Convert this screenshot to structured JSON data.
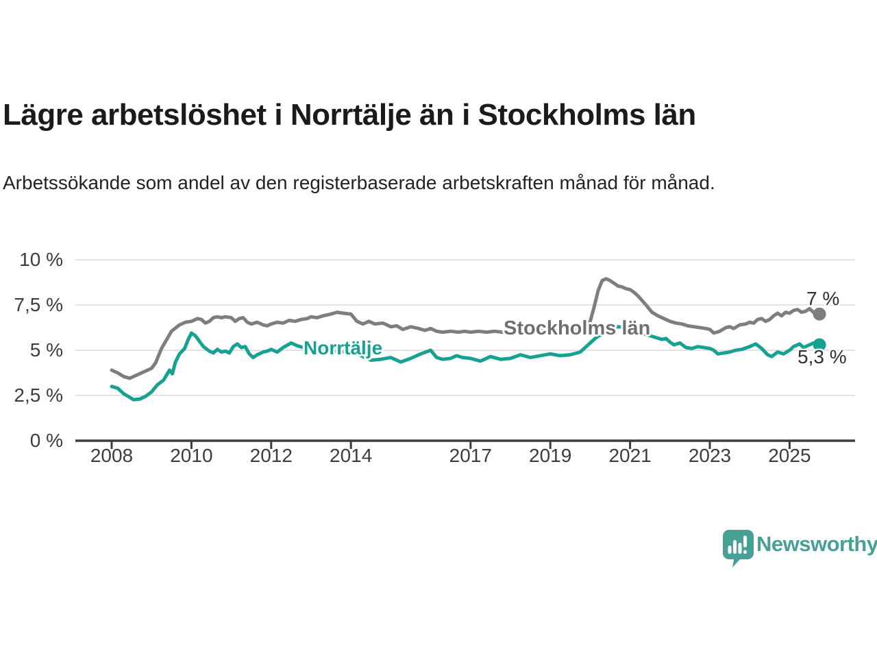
{
  "header": {
    "title": "Lägre arbetslöshet i Norrtälje än i Stockholms län",
    "subtitle": "Arbetssökande som andel av den registerbaserade arbetskraften månad för månad."
  },
  "chart_data": {
    "type": "line",
    "title": "Lägre arbetslöshet i Norrtälje än i Stockholms län",
    "subtitle": "Arbetssökande som andel av den registerbaserade arbetskraften månad för månad.",
    "unit": "%",
    "grid": true,
    "legend_position": "inline-labels",
    "x_axis": {
      "ticks": [
        2008,
        2010,
        2012,
        2014,
        2017,
        2019,
        2021,
        2023,
        2025
      ],
      "range": [
        2007.1,
        2026.6
      ]
    },
    "y_axis": {
      "ticks": [
        0,
        2.5,
        5,
        7.5,
        10
      ],
      "tick_labels": [
        "0 %",
        "2,5 %",
        "5 %",
        "7,5 %",
        "10 %"
      ],
      "range": [
        0,
        10
      ]
    },
    "series": [
      {
        "name": "Stockholms län",
        "color": "#7e7e7e",
        "end_label": "7 %",
        "end_value": 7.0,
        "points": [
          [
            2008.0,
            3.9
          ],
          [
            2008.15,
            3.75
          ],
          [
            2008.3,
            3.55
          ],
          [
            2008.45,
            3.45
          ],
          [
            2008.6,
            3.6
          ],
          [
            2008.8,
            3.8
          ],
          [
            2009.0,
            4.0
          ],
          [
            2009.1,
            4.3
          ],
          [
            2009.25,
            5.1
          ],
          [
            2009.5,
            6.05
          ],
          [
            2009.7,
            6.4
          ],
          [
            2009.85,
            6.55
          ],
          [
            2010.0,
            6.6
          ],
          [
            2010.15,
            6.75
          ],
          [
            2010.25,
            6.7
          ],
          [
            2010.35,
            6.5
          ],
          [
            2010.45,
            6.6
          ],
          [
            2010.55,
            6.8
          ],
          [
            2010.65,
            6.85
          ],
          [
            2010.75,
            6.8
          ],
          [
            2010.85,
            6.85
          ],
          [
            2011.0,
            6.8
          ],
          [
            2011.1,
            6.6
          ],
          [
            2011.2,
            6.75
          ],
          [
            2011.3,
            6.8
          ],
          [
            2011.4,
            6.55
          ],
          [
            2011.5,
            6.45
          ],
          [
            2011.65,
            6.55
          ],
          [
            2011.8,
            6.4
          ],
          [
            2011.9,
            6.35
          ],
          [
            2012.0,
            6.45
          ],
          [
            2012.15,
            6.55
          ],
          [
            2012.3,
            6.5
          ],
          [
            2012.45,
            6.65
          ],
          [
            2012.6,
            6.6
          ],
          [
            2012.75,
            6.7
          ],
          [
            2012.9,
            6.75
          ],
          [
            2013.0,
            6.85
          ],
          [
            2013.15,
            6.8
          ],
          [
            2013.3,
            6.9
          ],
          [
            2013.5,
            7.0
          ],
          [
            2013.65,
            7.1
          ],
          [
            2013.8,
            7.05
          ],
          [
            2014.0,
            7.0
          ],
          [
            2014.15,
            6.6
          ],
          [
            2014.3,
            6.45
          ],
          [
            2014.45,
            6.6
          ],
          [
            2014.6,
            6.45
          ],
          [
            2014.8,
            6.5
          ],
          [
            2015.0,
            6.3
          ],
          [
            2015.15,
            6.35
          ],
          [
            2015.3,
            6.15
          ],
          [
            2015.5,
            6.3
          ],
          [
            2015.7,
            6.2
          ],
          [
            2015.85,
            6.1
          ],
          [
            2016.0,
            6.2
          ],
          [
            2016.15,
            6.05
          ],
          [
            2016.3,
            6.0
          ],
          [
            2016.5,
            6.05
          ],
          [
            2016.7,
            6.0
          ],
          [
            2016.85,
            6.05
          ],
          [
            2017.0,
            6.0
          ],
          [
            2017.2,
            6.05
          ],
          [
            2017.4,
            6.0
          ],
          [
            2017.6,
            6.05
          ],
          [
            2017.8,
            6.0
          ],
          [
            2018.0,
            6.05
          ],
          [
            2018.25,
            6.1
          ],
          [
            2018.5,
            6.05
          ],
          [
            2018.75,
            6.1
          ],
          [
            2019.0,
            6.05
          ],
          [
            2019.25,
            6.1
          ],
          [
            2019.5,
            6.05
          ],
          [
            2019.75,
            6.15
          ],
          [
            2019.9,
            6.3
          ],
          [
            2020.0,
            6.6
          ],
          [
            2020.1,
            7.4
          ],
          [
            2020.2,
            8.3
          ],
          [
            2020.3,
            8.85
          ],
          [
            2020.4,
            8.95
          ],
          [
            2020.5,
            8.85
          ],
          [
            2020.6,
            8.7
          ],
          [
            2020.7,
            8.55
          ],
          [
            2020.8,
            8.5
          ],
          [
            2020.9,
            8.4
          ],
          [
            2021.0,
            8.35
          ],
          [
            2021.1,
            8.2
          ],
          [
            2021.2,
            8.0
          ],
          [
            2021.3,
            7.75
          ],
          [
            2021.4,
            7.5
          ],
          [
            2021.55,
            7.1
          ],
          [
            2021.7,
            6.9
          ],
          [
            2021.85,
            6.75
          ],
          [
            2022.0,
            6.6
          ],
          [
            2022.15,
            6.5
          ],
          [
            2022.3,
            6.45
          ],
          [
            2022.45,
            6.35
          ],
          [
            2022.6,
            6.3
          ],
          [
            2022.75,
            6.25
          ],
          [
            2022.9,
            6.2
          ],
          [
            2023.0,
            6.15
          ],
          [
            2023.1,
            5.95
          ],
          [
            2023.25,
            6.05
          ],
          [
            2023.4,
            6.25
          ],
          [
            2023.5,
            6.3
          ],
          [
            2023.6,
            6.2
          ],
          [
            2023.75,
            6.4
          ],
          [
            2023.9,
            6.45
          ],
          [
            2024.0,
            6.55
          ],
          [
            2024.1,
            6.5
          ],
          [
            2024.2,
            6.7
          ],
          [
            2024.3,
            6.75
          ],
          [
            2024.4,
            6.6
          ],
          [
            2024.5,
            6.7
          ],
          [
            2024.6,
            6.9
          ],
          [
            2024.7,
            7.05
          ],
          [
            2024.8,
            6.9
          ],
          [
            2024.9,
            7.1
          ],
          [
            2025.0,
            7.05
          ],
          [
            2025.1,
            7.2
          ],
          [
            2025.2,
            7.25
          ],
          [
            2025.3,
            7.1
          ],
          [
            2025.4,
            7.15
          ],
          [
            2025.5,
            7.3
          ],
          [
            2025.6,
            7.1
          ],
          [
            2025.67,
            7.05
          ],
          [
            2025.75,
            7.0
          ]
        ]
      },
      {
        "name": "Norrtälje",
        "color": "#16a192",
        "end_label": "5,3 %",
        "end_value": 5.3,
        "points": [
          [
            2008.0,
            3.0
          ],
          [
            2008.15,
            2.9
          ],
          [
            2008.3,
            2.6
          ],
          [
            2008.45,
            2.4
          ],
          [
            2008.55,
            2.27
          ],
          [
            2008.7,
            2.3
          ],
          [
            2008.85,
            2.45
          ],
          [
            2009.0,
            2.7
          ],
          [
            2009.15,
            3.1
          ],
          [
            2009.3,
            3.35
          ],
          [
            2009.45,
            3.9
          ],
          [
            2009.52,
            3.7
          ],
          [
            2009.6,
            4.35
          ],
          [
            2009.7,
            4.8
          ],
          [
            2009.83,
            5.1
          ],
          [
            2009.92,
            5.6
          ],
          [
            2010.0,
            5.95
          ],
          [
            2010.1,
            5.8
          ],
          [
            2010.2,
            5.5
          ],
          [
            2010.3,
            5.2
          ],
          [
            2010.45,
            4.95
          ],
          [
            2010.55,
            4.85
          ],
          [
            2010.65,
            5.05
          ],
          [
            2010.75,
            4.9
          ],
          [
            2010.85,
            4.95
          ],
          [
            2010.95,
            4.85
          ],
          [
            2011.05,
            5.2
          ],
          [
            2011.15,
            5.35
          ],
          [
            2011.25,
            5.15
          ],
          [
            2011.35,
            5.2
          ],
          [
            2011.45,
            4.8
          ],
          [
            2011.55,
            4.6
          ],
          [
            2011.65,
            4.75
          ],
          [
            2011.8,
            4.9
          ],
          [
            2011.9,
            4.95
          ],
          [
            2012.0,
            5.05
          ],
          [
            2012.15,
            4.9
          ],
          [
            2012.3,
            5.15
          ],
          [
            2012.5,
            5.4
          ],
          [
            2012.65,
            5.25
          ],
          [
            2012.8,
            5.15
          ],
          [
            2013.0,
            5.2
          ],
          [
            2013.25,
            5.1
          ],
          [
            2013.5,
            5.0
          ],
          [
            2013.75,
            4.9
          ],
          [
            2014.0,
            5.0
          ],
          [
            2014.25,
            4.7
          ],
          [
            2014.5,
            4.45
          ],
          [
            2014.75,
            4.5
          ],
          [
            2015.0,
            4.6
          ],
          [
            2015.25,
            4.35
          ],
          [
            2015.5,
            4.55
          ],
          [
            2015.75,
            4.8
          ],
          [
            2016.0,
            5.0
          ],
          [
            2016.15,
            4.6
          ],
          [
            2016.3,
            4.5
          ],
          [
            2016.5,
            4.55
          ],
          [
            2016.65,
            4.7
          ],
          [
            2016.8,
            4.6
          ],
          [
            2017.0,
            4.55
          ],
          [
            2017.25,
            4.4
          ],
          [
            2017.5,
            4.65
          ],
          [
            2017.75,
            4.5
          ],
          [
            2018.0,
            4.55
          ],
          [
            2018.25,
            4.75
          ],
          [
            2018.5,
            4.6
          ],
          [
            2018.75,
            4.7
          ],
          [
            2019.0,
            4.8
          ],
          [
            2019.25,
            4.7
          ],
          [
            2019.5,
            4.75
          ],
          [
            2019.75,
            4.9
          ],
          [
            2019.9,
            5.2
          ],
          [
            2020.0,
            5.4
          ],
          [
            2020.15,
            5.7
          ],
          [
            2020.3,
            5.9
          ],
          [
            2020.5,
            6.2
          ],
          [
            2020.7,
            6.3
          ],
          [
            2020.9,
            6.25
          ],
          [
            2021.1,
            6.1
          ],
          [
            2021.3,
            5.95
          ],
          [
            2021.5,
            5.8
          ],
          [
            2021.65,
            5.7
          ],
          [
            2021.8,
            5.6
          ],
          [
            2021.9,
            5.65
          ],
          [
            2022.0,
            5.45
          ],
          [
            2022.1,
            5.3
          ],
          [
            2022.25,
            5.4
          ],
          [
            2022.4,
            5.15
          ],
          [
            2022.55,
            5.1
          ],
          [
            2022.7,
            5.2
          ],
          [
            2022.85,
            5.15
          ],
          [
            2023.0,
            5.1
          ],
          [
            2023.1,
            5.0
          ],
          [
            2023.2,
            4.8
          ],
          [
            2023.35,
            4.85
          ],
          [
            2023.5,
            4.9
          ],
          [
            2023.65,
            5.0
          ],
          [
            2023.8,
            5.05
          ],
          [
            2024.0,
            5.2
          ],
          [
            2024.15,
            5.35
          ],
          [
            2024.3,
            5.1
          ],
          [
            2024.45,
            4.75
          ],
          [
            2024.55,
            4.65
          ],
          [
            2024.7,
            4.9
          ],
          [
            2024.85,
            4.8
          ],
          [
            2025.0,
            5.0
          ],
          [
            2025.1,
            5.2
          ],
          [
            2025.25,
            5.35
          ],
          [
            2025.35,
            5.15
          ],
          [
            2025.5,
            5.3
          ],
          [
            2025.6,
            5.4
          ],
          [
            2025.67,
            5.35
          ],
          [
            2025.75,
            5.3
          ]
        ]
      }
    ],
    "colors": {
      "grid": "#d9d9d9",
      "axis": "#3c3c3c",
      "stockholm_line": "#7e7e7e",
      "norrtalje_line": "#16a192",
      "brand_teal": "#47a096"
    }
  },
  "branding": {
    "name": "Newsworthy",
    "logo_icon": "bar-chart-speech-bubble"
  }
}
